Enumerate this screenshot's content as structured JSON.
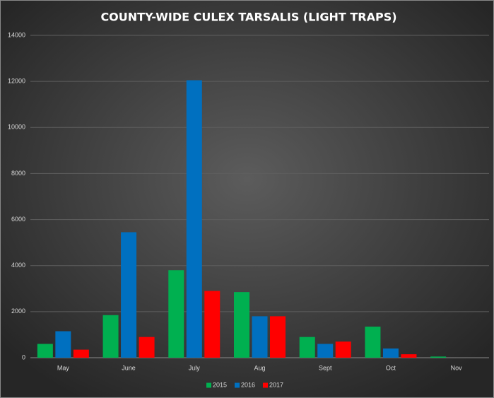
{
  "chart_data": {
    "type": "bar",
    "title": "COUNTY-WIDE CULEX TARSALIS (LIGHT TRAPS)",
    "categories": [
      "May",
      "June",
      "July",
      "Aug",
      "Sept",
      "Oct",
      "Nov"
    ],
    "series": [
      {
        "name": "2015",
        "color": "#00b050",
        "values": [
          600,
          1850,
          3800,
          2850,
          900,
          1350,
          50
        ]
      },
      {
        "name": "2016",
        "color": "#0070c0",
        "values": [
          1150,
          5450,
          12050,
          1800,
          600,
          400,
          0
        ]
      },
      {
        "name": "2017",
        "color": "#ff0000",
        "values": [
          350,
          900,
          2900,
          1800,
          700,
          150,
          0
        ]
      }
    ],
    "ylim": [
      0,
      14000
    ],
    "yticks": [
      0,
      2000,
      4000,
      6000,
      8000,
      10000,
      12000,
      14000
    ],
    "grid": true,
    "legend": "bottom"
  }
}
